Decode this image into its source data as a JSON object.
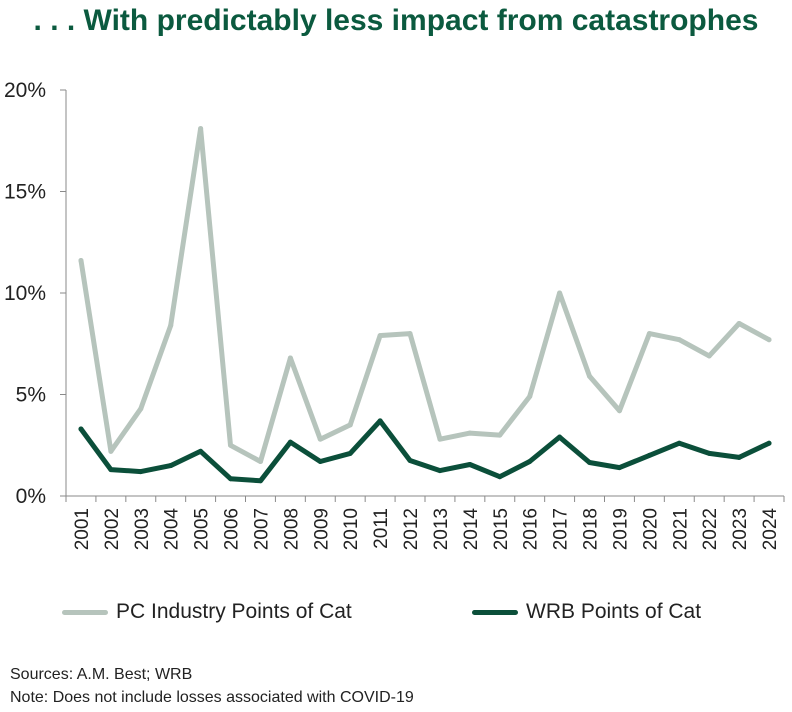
{
  "title": ". . . With predictably less impact from catastrophes",
  "colors": {
    "industry": "#b6c4bc",
    "wrb": "#0b4f3a",
    "title": "#0b5a3f",
    "axis": "#8a8a8a"
  },
  "chart_data": {
    "type": "line",
    "title": ". . . With predictably less impact from catastrophes",
    "xlabel": "",
    "ylabel": "",
    "categories": [
      "2001",
      "2002",
      "2003",
      "2004",
      "2005",
      "2006",
      "2007",
      "2008",
      "2009",
      "2010",
      "2011",
      "2012",
      "2013",
      "2014",
      "2015",
      "2016",
      "2017",
      "2018",
      "2019",
      "2020",
      "2021",
      "2022",
      "2023",
      "2024"
    ],
    "ylim": [
      0,
      20
    ],
    "yticks": [
      {
        "value": 0,
        "label": "0%"
      },
      {
        "value": 5,
        "label": "5%"
      },
      {
        "value": 10,
        "label": "10%"
      },
      {
        "value": 15,
        "label": "15%"
      },
      {
        "value": 20,
        "label": "20%"
      }
    ],
    "grid": false,
    "legend_position": "bottom",
    "series": [
      {
        "name": "PC Industry Points of Cat",
        "color": "#b6c4bc",
        "values": [
          11.6,
          2.2,
          4.3,
          8.4,
          18.1,
          2.5,
          1.7,
          6.8,
          2.8,
          3.5,
          7.9,
          8.0,
          2.8,
          3.1,
          3.0,
          4.9,
          10.0,
          5.9,
          4.2,
          8.0,
          7.7,
          6.9,
          8.5,
          7.7
        ]
      },
      {
        "name": "WRB Points of Cat",
        "color": "#0b4f3a",
        "values": [
          3.3,
          1.3,
          1.2,
          1.5,
          2.2,
          0.85,
          0.75,
          2.65,
          1.7,
          2.1,
          3.7,
          1.75,
          1.25,
          1.55,
          0.95,
          1.7,
          2.9,
          1.65,
          1.4,
          2.0,
          2.6,
          2.1,
          1.9,
          2.6
        ]
      }
    ]
  },
  "footnotes": {
    "sources": "Sources: A.M. Best; WRB",
    "note": "Note: Does not include losses associated with COVID-19"
  }
}
